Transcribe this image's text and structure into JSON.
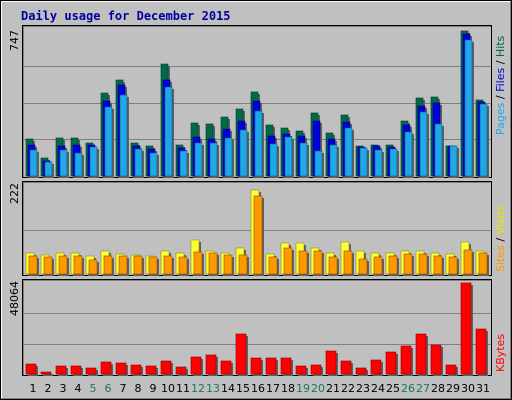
{
  "chart_data": [
    {
      "type": "bar",
      "title": "Daily usage for December 2015",
      "legend_position": "right",
      "ylim": [
        0,
        747
      ],
      "y_max_label": "747",
      "categories": [
        "1",
        "2",
        "3",
        "4",
        "5",
        "6",
        "7",
        "8",
        "9",
        "10",
        "11",
        "12",
        "13",
        "14",
        "15",
        "16",
        "17",
        "18",
        "19",
        "20",
        "21",
        "22",
        "23",
        "24",
        "25",
        "26",
        "27",
        "28",
        "29",
        "30",
        "31"
      ],
      "series": [
        {
          "name": "Hits",
          "color": "#006a4b",
          "values": [
            190,
            90,
            195,
            195,
            170,
            420,
            490,
            170,
            150,
            570,
            160,
            270,
            265,
            300,
            340,
            425,
            260,
            245,
            230,
            320,
            220,
            310,
            150,
            160,
            160,
            280,
            395,
            400,
            150,
            735,
            385
          ]
        },
        {
          "name": "Files",
          "color": "#0000d8",
          "values": [
            155,
            75,
            150,
            155,
            155,
            380,
            460,
            150,
            135,
            490,
            140,
            200,
            190,
            240,
            280,
            380,
            205,
            215,
            205,
            280,
            190,
            275,
            145,
            150,
            145,
            260,
            355,
            370,
            150,
            720,
            375
          ]
        },
        {
          "name": "Pages",
          "color": "#1ea8e8",
          "values": [
            130,
            70,
            130,
            115,
            145,
            350,
            410,
            135,
            115,
            450,
            125,
            170,
            170,
            195,
            235,
            330,
            165,
            200,
            170,
            125,
            160,
            245,
            140,
            130,
            135,
            225,
            325,
            265,
            150,
            690,
            365
          ]
        }
      ],
      "weekend_days": [
        "5",
        "6",
        "12",
        "13",
        "19",
        "20",
        "26",
        "27"
      ],
      "day_label_color": "#000000",
      "weekend_label_color": "#1a7a50"
    },
    {
      "type": "bar",
      "ylim": [
        0,
        222
      ],
      "y_max_label": "222",
      "categories": [
        "1",
        "2",
        "3",
        "4",
        "5",
        "6",
        "7",
        "8",
        "9",
        "10",
        "11",
        "12",
        "13",
        "14",
        "15",
        "16",
        "17",
        "18",
        "19",
        "20",
        "21",
        "22",
        "23",
        "24",
        "25",
        "26",
        "27",
        "28",
        "29",
        "30",
        "31"
      ],
      "series": [
        {
          "name": "Visits",
          "color": "#ffff33",
          "values": [
            52,
            48,
            52,
            52,
            45,
            58,
            50,
            48,
            45,
            58,
            52,
            85,
            58,
            52,
            65,
            210,
            50,
            78,
            78,
            65,
            52,
            80,
            58,
            52,
            52,
            58,
            58,
            52,
            50,
            80,
            58
          ]
        },
        {
          "name": "Sites",
          "color": "#ff9900",
          "values": [
            45,
            42,
            45,
            45,
            35,
            45,
            45,
            45,
            42,
            45,
            42,
            55,
            52,
            48,
            48,
            195,
            42,
            65,
            58,
            58,
            42,
            58,
            38,
            42,
            45,
            50,
            50,
            45,
            42,
            60,
            52
          ]
        }
      ]
    },
    {
      "type": "bar",
      "ylim": [
        0,
        48064
      ],
      "y_max_label": "48064",
      "categories": [
        "1",
        "2",
        "3",
        "4",
        "5",
        "6",
        "7",
        "8",
        "9",
        "10",
        "11",
        "12",
        "13",
        "14",
        "15",
        "16",
        "17",
        "18",
        "19",
        "20",
        "21",
        "22",
        "23",
        "24",
        "25",
        "26",
        "27",
        "28",
        "29",
        "30",
        "31"
      ],
      "series": [
        {
          "name": "KBytes",
          "color": "#ff0000",
          "values": [
            5200,
            1300,
            4300,
            4300,
            3400,
            6600,
            5600,
            4700,
            4100,
            6900,
            3900,
            9100,
            10000,
            7100,
            21000,
            8600,
            8600,
            8300,
            4300,
            4500,
            12000,
            6900,
            3100,
            7600,
            11500,
            15000,
            21000,
            15500,
            5000,
            48064,
            24000
          ]
        }
      ]
    }
  ]
}
